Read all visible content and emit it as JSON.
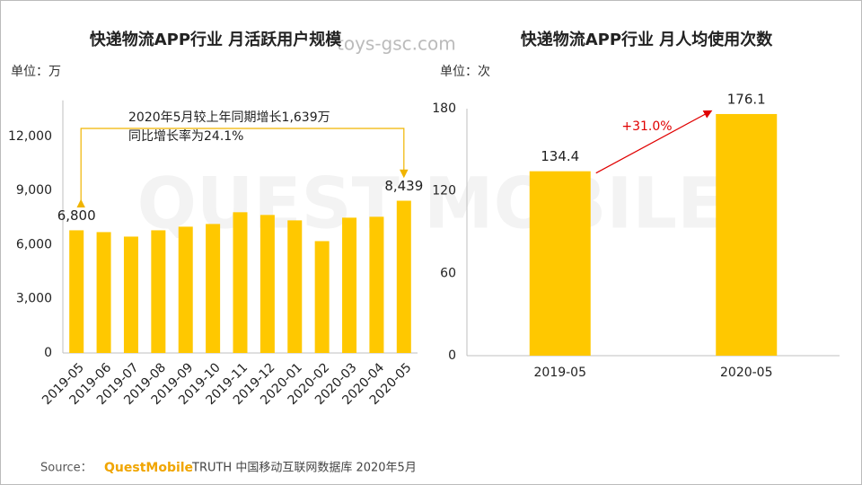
{
  "watermark": "toys-gsc.com",
  "watermark_logo": "QUEST MOBILE",
  "source": {
    "label": "Source：",
    "brand": "QuestMobile",
    "text": "TRUTH 中国移动互联网数据库 2020年5月"
  },
  "chart_data": [
    {
      "type": "bar",
      "title": "快递物流APP行业 月活跃用户规模",
      "unit": "单位：万",
      "categories": [
        "2019-05",
        "2019-06",
        "2019-07",
        "2019-08",
        "2019-09",
        "2019-10",
        "2019-11",
        "2019-12",
        "2020-01",
        "2020-02",
        "2020-03",
        "2020-04",
        "2020-05"
      ],
      "values": [
        6800,
        6700,
        6450,
        6800,
        7000,
        7150,
        7800,
        7650,
        7350,
        6200,
        7500,
        7550,
        8439
      ],
      "value_labels": [
        "6,800",
        null,
        null,
        null,
        null,
        null,
        null,
        null,
        null,
        null,
        null,
        null,
        "8,439"
      ],
      "color": "#ffc800",
      "ylim": [
        0,
        14000
      ],
      "yticks": [
        0,
        {
          "value": 3000,
          "label": "3,000"
        },
        {
          "value": 6000,
          "label": "6,000"
        },
        {
          "value": 9000,
          "label": "9,000"
        },
        {
          "value": 12000,
          "label": "12,000"
        }
      ],
      "grid": false,
      "annotation": [
        "2020年5月较上年同期增长1,639万",
        "同比增长率为24.1%"
      ]
    },
    {
      "type": "bar",
      "title": "快递物流APP行业 月人均使用次数",
      "unit": "单位：次",
      "categories": [
        "2019-05",
        "2020-05"
      ],
      "values": [
        134.4,
        176.1
      ],
      "color": "#ffc800",
      "ylim": [
        0,
        180
      ],
      "yticks": [
        0,
        60,
        120,
        180
      ],
      "grid": false,
      "annotation": [
        "+31.0%"
      ]
    }
  ]
}
